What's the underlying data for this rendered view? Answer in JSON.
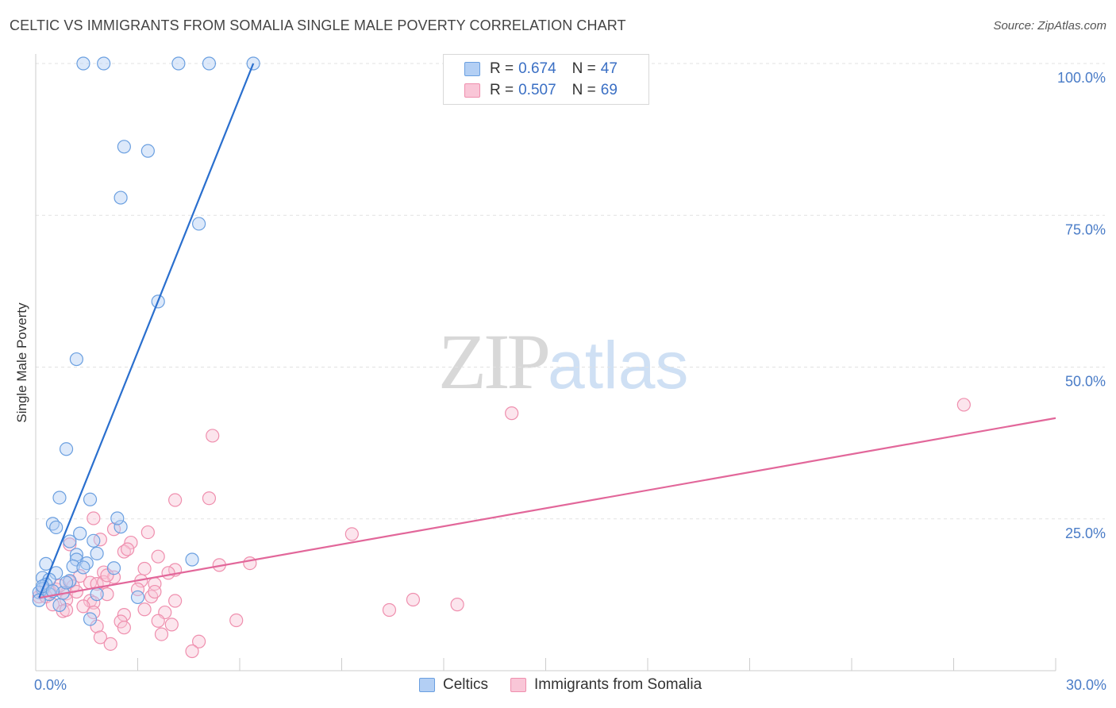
{
  "title": "CELTIC VS IMMIGRANTS FROM SOMALIA SINGLE MALE POVERTY CORRELATION CHART",
  "source": "Source: ZipAtlas.com",
  "watermark": {
    "zip": "ZIP",
    "atlas": "atlas"
  },
  "legend": {
    "rows": [
      {
        "r_label": "R =",
        "r_value": "0.674",
        "n_label": "N =",
        "n_value": "47"
      },
      {
        "r_label": "R =",
        "r_value": "0.507",
        "n_label": "N =",
        "n_value": "69"
      }
    ]
  },
  "bottom_legend": [
    "Celtics",
    "Immigrants from Somalia"
  ],
  "chart_data": {
    "type": "scatter",
    "title": "CELTIC VS IMMIGRANTS FROM SOMALIA SINGLE MALE POVERTY CORRELATION CHART",
    "xlabel": "",
    "ylabel": "Single Male Poverty",
    "xlim": [
      0,
      30
    ],
    "ylim": [
      0,
      100
    ],
    "x_tick_labels": [
      "0.0%",
      "30.0%"
    ],
    "y_ticks": [
      25,
      50,
      75,
      100
    ],
    "y_tick_labels": [
      "25.0%",
      "50.0%",
      "75.0%",
      "100.0%"
    ],
    "grid": true,
    "colors": {
      "celtics": "#6a9fe0",
      "somalia": "#ef8fae",
      "celtics_line": "#2a6fce",
      "somalia_line": "#e2679a",
      "celtics_fill": "#b3cff4",
      "somalia_fill": "#f9c6d7"
    },
    "series": [
      {
        "name": "Celtics",
        "color": "#6a9fe0",
        "R": 0.674,
        "N": 47,
        "trendline": {
          "x": [
            0.1,
            6.4
          ],
          "y": [
            12.0,
            100.0
          ]
        },
        "points": [
          [
            1.4,
            100
          ],
          [
            2.0,
            100
          ],
          [
            4.2,
            100
          ],
          [
            5.1,
            100
          ],
          [
            6.4,
            100
          ],
          [
            2.6,
            86.3
          ],
          [
            3.3,
            85.6
          ],
          [
            2.5,
            77.9
          ],
          [
            4.8,
            73.6
          ],
          [
            3.6,
            60.8
          ],
          [
            1.2,
            51.3
          ],
          [
            0.9,
            36.5
          ],
          [
            0.7,
            28.5
          ],
          [
            1.6,
            28.2
          ],
          [
            0.5,
            24.2
          ],
          [
            0.6,
            23.6
          ],
          [
            2.5,
            23.7
          ],
          [
            2.4,
            25.1
          ],
          [
            1.3,
            22.6
          ],
          [
            1.0,
            21.3
          ],
          [
            1.7,
            21.4
          ],
          [
            1.8,
            19.3
          ],
          [
            1.2,
            19.1
          ],
          [
            1.2,
            18.3
          ],
          [
            4.6,
            18.3
          ],
          [
            1.5,
            17.7
          ],
          [
            0.3,
            17.6
          ],
          [
            1.1,
            17.2
          ],
          [
            1.4,
            17.0
          ],
          [
            2.3,
            16.9
          ],
          [
            0.6,
            16.1
          ],
          [
            0.2,
            15.3
          ],
          [
            0.4,
            15.0
          ],
          [
            1.0,
            14.8
          ],
          [
            0.3,
            14.2
          ],
          [
            0.2,
            13.5
          ],
          [
            0.1,
            12.9
          ],
          [
            0.4,
            12.6
          ],
          [
            0.8,
            12.8
          ],
          [
            1.8,
            12.6
          ],
          [
            3.0,
            12.1
          ],
          [
            0.1,
            11.6
          ],
          [
            0.7,
            10.8
          ],
          [
            1.6,
            8.5
          ],
          [
            0.2,
            13.9
          ],
          [
            0.5,
            13.1
          ],
          [
            0.9,
            14.5
          ]
        ]
      },
      {
        "name": "Immigrants from Somalia",
        "color": "#ef8fae",
        "R": 0.507,
        "N": 69,
        "trendline": {
          "x": [
            0.1,
            30.0
          ],
          "y": [
            12.0,
            41.6
          ]
        },
        "points": [
          [
            27.3,
            43.8
          ],
          [
            14.0,
            42.4
          ],
          [
            5.2,
            38.7
          ],
          [
            5.1,
            28.4
          ],
          [
            4.1,
            28.1
          ],
          [
            1.7,
            25.1
          ],
          [
            2.3,
            23.3
          ],
          [
            3.3,
            22.8
          ],
          [
            9.3,
            22.5
          ],
          [
            1.9,
            21.6
          ],
          [
            2.8,
            21.1
          ],
          [
            1.0,
            20.8
          ],
          [
            2.6,
            19.6
          ],
          [
            3.6,
            18.8
          ],
          [
            6.3,
            17.7
          ],
          [
            5.4,
            17.4
          ],
          [
            3.2,
            16.8
          ],
          [
            4.1,
            16.6
          ],
          [
            2.0,
            16.2
          ],
          [
            3.9,
            16.1
          ],
          [
            2.3,
            15.4
          ],
          [
            1.3,
            15.6
          ],
          [
            3.1,
            14.8
          ],
          [
            1.6,
            14.5
          ],
          [
            1.0,
            14.6
          ],
          [
            1.8,
            14.3
          ],
          [
            2.0,
            14.6
          ],
          [
            3.5,
            14.3
          ],
          [
            1.1,
            13.9
          ],
          [
            3.0,
            13.4
          ],
          [
            0.6,
            13.4
          ],
          [
            0.4,
            13.2
          ],
          [
            0.2,
            12.9
          ],
          [
            0.9,
            12.7
          ],
          [
            2.1,
            12.6
          ],
          [
            0.1,
            12.2
          ],
          [
            0.3,
            12.2
          ],
          [
            0.9,
            11.7
          ],
          [
            1.6,
            11.5
          ],
          [
            1.7,
            11.2
          ],
          [
            3.4,
            12.2
          ],
          [
            4.1,
            11.5
          ],
          [
            11.1,
            11.7
          ],
          [
            0.5,
            10.9
          ],
          [
            1.4,
            10.6
          ],
          [
            12.4,
            10.9
          ],
          [
            10.4,
            10.0
          ],
          [
            2.6,
            9.2
          ],
          [
            1.7,
            9.6
          ],
          [
            0.8,
            9.8
          ],
          [
            0.9,
            10.0
          ],
          [
            3.2,
            10.1
          ],
          [
            3.8,
            9.6
          ],
          [
            2.5,
            8.1
          ],
          [
            5.9,
            8.3
          ],
          [
            3.6,
            8.2
          ],
          [
            2.6,
            7.1
          ],
          [
            4.0,
            7.6
          ],
          [
            1.8,
            7.3
          ],
          [
            3.7,
            6.0
          ],
          [
            1.9,
            5.5
          ],
          [
            4.8,
            4.8
          ],
          [
            2.2,
            4.4
          ],
          [
            4.6,
            3.2
          ],
          [
            2.1,
            15.7
          ],
          [
            1.2,
            13.0
          ],
          [
            0.7,
            14.0
          ],
          [
            3.5,
            13.0
          ],
          [
            2.7,
            20.0
          ]
        ]
      }
    ]
  }
}
